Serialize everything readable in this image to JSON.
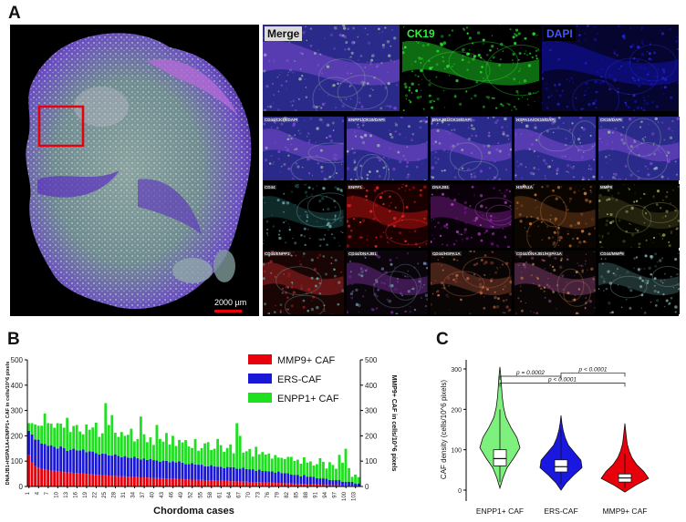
{
  "panels": {
    "a": "A",
    "b": "B",
    "c": "C"
  },
  "panel_a": {
    "scale_bar_label": "2000 µm",
    "top_row": [
      {
        "label": "Merge",
        "label_color": "#111111",
        "label_bg": "#dcdcdc",
        "stain": "merge"
      },
      {
        "label": "CK19",
        "label_color": "#2ef03a",
        "label_bg": "#000000",
        "stain": "green"
      },
      {
        "label": "DAPI",
        "label_color": "#4455ff",
        "label_bg": "#000000",
        "stain": "blue"
      }
    ],
    "rows": [
      [
        {
          "label": "CD44/CK19/DAPI",
          "stain": "merge"
        },
        {
          "label": "ENPP1/CK19/DAPI",
          "stain": "merge"
        },
        {
          "label": "DNAJB1/CK19/DAPI",
          "stain": "merge"
        },
        {
          "label": "HSPA1A/CK19/DAPI",
          "stain": "merge"
        },
        {
          "label": "CK19/DAPI",
          "stain": "merge"
        }
      ],
      [
        {
          "label": "CD44",
          "stain": "cyan"
        },
        {
          "label": "ENPP1",
          "stain": "red"
        },
        {
          "label": "DNAJB1",
          "stain": "magenta"
        },
        {
          "label": "HSPA1A",
          "stain": "orange"
        },
        {
          "label": "MMP9",
          "stain": "yellow"
        }
      ],
      [
        {
          "label": "CD44/ENPP1",
          "stain": "redmix"
        },
        {
          "label": "CD44/DNAJB1",
          "stain": "purplemix"
        },
        {
          "label": "CD44/HSPA1A",
          "stain": "orangemix"
        },
        {
          "label": "CD44/DNAJB1/HSPA1A",
          "stain": "mix3"
        },
        {
          "label": "CD44/MMP9",
          "stain": "cyanmix"
        }
      ]
    ]
  },
  "chart_data": [
    {
      "type": "bar",
      "stacked": true,
      "xlabel": "Chordoma cases",
      "ylabel_left": "DNAJB1+HSPA1A+ENPP1+ CAF in cells/10^6 pixels",
      "ylabel_right": "MMP9+ CAF in cells/10^6 pixels",
      "ylim": [
        0,
        500
      ],
      "yticks": [
        0,
        100,
        200,
        300,
        400,
        500
      ],
      "x_tick_labels": [
        "1",
        "4",
        "7",
        "10",
        "13",
        "16",
        "19",
        "22",
        "25",
        "28",
        "31",
        "34",
        "37",
        "40",
        "43",
        "46",
        "49",
        "52",
        "55",
        "58",
        "61",
        "64",
        "67",
        "70",
        "73",
        "76",
        "79",
        "82",
        "85",
        "88",
        "91",
        "94",
        "97",
        "100",
        "103"
      ],
      "legend": [
        {
          "name": "MMP9+ CAF",
          "color": "#e8000b"
        },
        {
          "name": "ERS-CAF",
          "color": "#1a17d6"
        },
        {
          "name": "ENPP1+ CAF",
          "color": "#1ee01e"
        }
      ],
      "series": [
        {
          "name": "MMP9+ CAF",
          "values": [
            125,
            95,
            80,
            75,
            70,
            68,
            65,
            63,
            62,
            60,
            58,
            57,
            56,
            55,
            54,
            53,
            52,
            51,
            50,
            49,
            48,
            47,
            46,
            45,
            44,
            43,
            42,
            42,
            41,
            40,
            40,
            39,
            38,
            38,
            37,
            36,
            36,
            35,
            34,
            34,
            33,
            33,
            32,
            31,
            31,
            30,
            30,
            29,
            29,
            28,
            28,
            27,
            27,
            26,
            26,
            25,
            25,
            24,
            24,
            23,
            23,
            22,
            22,
            21,
            21,
            20,
            20,
            19,
            19,
            18,
            18,
            17,
            17,
            16,
            16,
            15,
            15,
            14,
            14,
            13,
            13,
            12,
            12,
            11,
            11,
            10,
            10,
            9,
            9,
            8,
            8,
            7,
            7,
            6,
            6,
            5,
            5,
            5,
            4,
            4,
            3,
            3,
            2,
            2
          ]
        },
        {
          "name": "ERS-CAF",
          "values": [
            95,
            110,
            105,
            110,
            100,
            100,
            95,
            100,
            95,
            90,
            100,
            95,
            85,
            90,
            95,
            90,
            90,
            95,
            85,
            90,
            90,
            85,
            80,
            85,
            85,
            80,
            80,
            85,
            80,
            75,
            80,
            75,
            75,
            80,
            75,
            70,
            75,
            70,
            75,
            70,
            70,
            65,
            70,
            70,
            65,
            70,
            65,
            70,
            65,
            60,
            60,
            65,
            60,
            60,
            60,
            55,
            55,
            60,
            55,
            55,
            55,
            50,
            55,
            55,
            55,
            50,
            50,
            55,
            50,
            50,
            50,
            45,
            50,
            45,
            45,
            45,
            45,
            40,
            45,
            40,
            40,
            40,
            35,
            35,
            35,
            30,
            35,
            30,
            30,
            30,
            25,
            25,
            25,
            25,
            20,
            20,
            20,
            20,
            15,
            15,
            15,
            15,
            10,
            10
          ]
        },
        {
          "name": "ENPP1+ CAF",
          "values": [
            30,
            45,
            60,
            55,
            70,
            120,
            90,
            85,
            75,
            100,
            90,
            80,
            130,
            70,
            90,
            100,
            75,
            60,
            110,
            85,
            95,
            120,
            70,
            80,
            200,
            120,
            160,
            85,
            75,
            100,
            80,
            90,
            115,
            60,
            75,
            170,
            95,
            70,
            85,
            60,
            140,
            90,
            75,
            110,
            70,
            100,
            65,
            85,
            80,
            95,
            70,
            60,
            100,
            55,
            65,
            90,
            95,
            60,
            70,
            110,
            85,
            65,
            75,
            90,
            55,
            180,
            130,
            60,
            70,
            80,
            50,
            95,
            60,
            75,
            65,
            70,
            50,
            70,
            55,
            60,
            55,
            65,
            70,
            55,
            60,
            50,
            70,
            55,
            60,
            45,
            55,
            80,
            65,
            40,
            70,
            60,
            45,
            100,
            75,
            130,
            55,
            20,
            35,
            25
          ]
        }
      ]
    },
    {
      "type": "violin",
      "ylabel": "CAF density (cells/10^6 pixels)",
      "ylim": [
        0,
        300
      ],
      "yticks": [
        0,
        100,
        200,
        300
      ],
      "categories": [
        "ENPP1+ CAF",
        "ERS-CAF",
        "MMP9+ CAF"
      ],
      "colors": [
        "#7ef07e",
        "#1a17e0",
        "#e8000b"
      ],
      "box": [
        {
          "q1": 60,
          "median": 78,
          "q3": 100,
          "whisker_low": 20,
          "whisker_high": 200
        },
        {
          "q1": 45,
          "median": 58,
          "q3": 75,
          "whisker_low": 15,
          "whisker_high": 150
        },
        {
          "q1": 20,
          "median": 30,
          "q3": 40,
          "whisker_low": 5,
          "whisker_high": 90
        }
      ],
      "violin_range": [
        [
          5,
          305
        ],
        [
          0,
          185
        ],
        [
          -5,
          165
        ]
      ],
      "comparisons": [
        {
          "from": "ENPP1+ CAF",
          "to": "ERS-CAF",
          "label": "p = 0.0002"
        },
        {
          "from": "ERS-CAF",
          "to": "MMP9+ CAF",
          "label": "p < 0.0001"
        },
        {
          "from": "ENPP1+ CAF",
          "to": "MMP9+ CAF",
          "label": "p < 0.0001"
        }
      ]
    }
  ]
}
